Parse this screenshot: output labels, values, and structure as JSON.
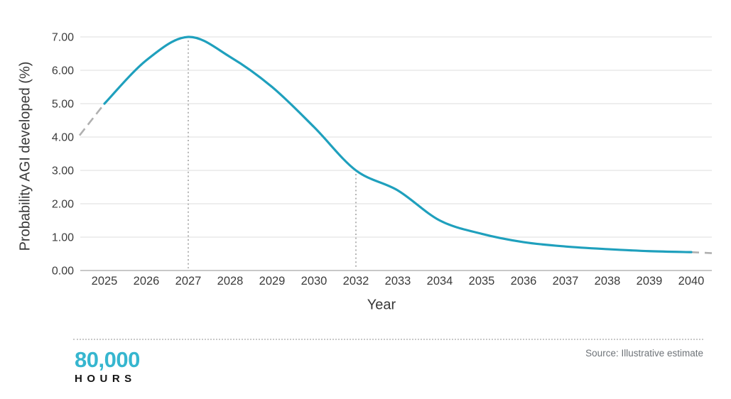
{
  "chart_data": {
    "type": "line",
    "title": "",
    "xlabel": "Year",
    "ylabel": "Probability AGI developed (%)",
    "categories": [
      "2025",
      "2026",
      "2027",
      "2028",
      "2029",
      "2030",
      "2032",
      "2033",
      "2034",
      "2035",
      "2036",
      "2037",
      "2038",
      "2039",
      "2040"
    ],
    "values": [
      5.0,
      6.3,
      7.0,
      6.4,
      5.5,
      4.3,
      3.0,
      2.4,
      1.5,
      1.1,
      0.85,
      0.72,
      0.64,
      0.58,
      0.55
    ],
    "series_name": "Probability AGI developed",
    "ylim": [
      0,
      7
    ],
    "y_ticks": [
      "0.00",
      "1.00",
      "2.00",
      "3.00",
      "4.00",
      "5.00",
      "6.00",
      "7.00"
    ],
    "grid": "horizontal",
    "legend": "none",
    "annotations": [
      {
        "type": "dotted-vline",
        "at": "2027",
        "value": 7.0
      },
      {
        "type": "dotted-vline",
        "at": "2032",
        "value": 3.0
      }
    ],
    "lead_in_dash": {
      "style": "dashed-gray",
      "from_value": 4.05,
      "note": "extrapolation before 2025"
    },
    "lead_out_dash": {
      "style": "dashed-gray",
      "to_value": 0.52,
      "note": "extrapolation after 2040"
    },
    "colors": {
      "line": "#1fa0bd",
      "dash": "#b0b0b0",
      "grid": "#dedede",
      "axis": "#a8a8a8"
    }
  },
  "footer": {
    "logo_line1": "80,000",
    "logo_line2": "HOURS",
    "logo_color": "#36b6cf",
    "source": "Source: Illustrative estimate"
  }
}
